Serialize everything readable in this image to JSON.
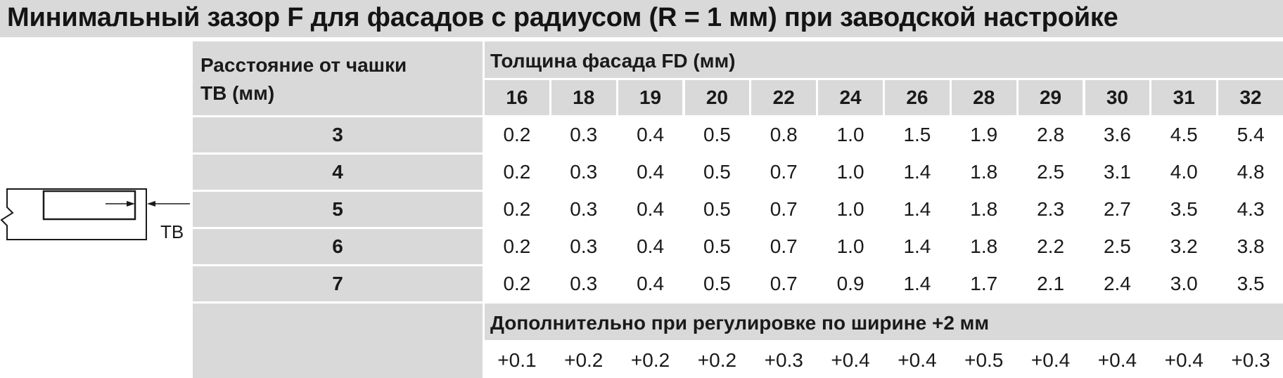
{
  "title": "Минимальный зазор F для фасадов с радиусом (R = 1 мм) при заводской настройке",
  "drawing": {
    "label": "TB"
  },
  "table": {
    "row_header_line1": "Расстояние от чашки",
    "row_header_line2": "TB (мм)",
    "column_group_header": "Толщина фасада FD (мм)",
    "columns": [
      "16",
      "18",
      "19",
      "20",
      "22",
      "24",
      "26",
      "28",
      "29",
      "30",
      "31",
      "32"
    ],
    "rows": [
      {
        "label": "3",
        "values": [
          "0.2",
          "0.3",
          "0.4",
          "0.5",
          "0.8",
          "1.0",
          "1.5",
          "1.9",
          "2.8",
          "3.6",
          "4.5",
          "5.4"
        ]
      },
      {
        "label": "4",
        "values": [
          "0.2",
          "0.3",
          "0.4",
          "0.5",
          "0.7",
          "1.0",
          "1.4",
          "1.8",
          "2.5",
          "3.1",
          "4.0",
          "4.8"
        ]
      },
      {
        "label": "5",
        "values": [
          "0.2",
          "0.3",
          "0.4",
          "0.5",
          "0.7",
          "1.0",
          "1.4",
          "1.8",
          "2.3",
          "2.7",
          "3.5",
          "4.3"
        ]
      },
      {
        "label": "6",
        "values": [
          "0.2",
          "0.3",
          "0.4",
          "0.5",
          "0.7",
          "1.0",
          "1.4",
          "1.8",
          "2.2",
          "2.5",
          "3.2",
          "3.8"
        ]
      },
      {
        "label": "7",
        "values": [
          "0.2",
          "0.3",
          "0.4",
          "0.5",
          "0.7",
          "0.9",
          "1.4",
          "1.7",
          "2.1",
          "2.4",
          "3.0",
          "3.5"
        ]
      }
    ],
    "extra_label": "Дополнительно при регулировке по ширине +2 мм",
    "extra_values": [
      "+0.1",
      "+0.2",
      "+0.2",
      "+0.2",
      "+0.3",
      "+0.4",
      "+0.4",
      "+0.5",
      "+0.4",
      "+0.4",
      "+0.4",
      "+0.3"
    ]
  }
}
